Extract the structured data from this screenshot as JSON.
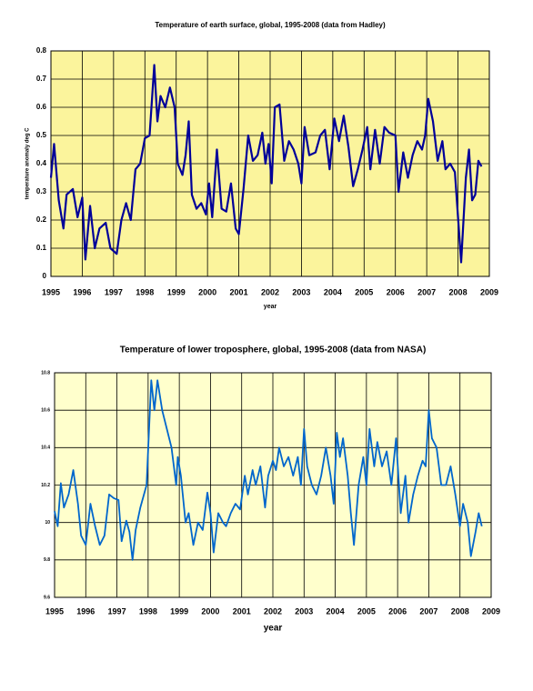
{
  "chart_data": [
    {
      "type": "line",
      "title": "Temperature of earth surface, global, 1995-2008 (data from Hadley)",
      "xlabel": "year",
      "ylabel": "temperature anomaly deg C",
      "color": "#000099",
      "xlim": [
        1995,
        2009
      ],
      "xticks": [
        1995,
        1996,
        1997,
        1998,
        1999,
        2000,
        2001,
        2002,
        2003,
        2004,
        2005,
        2006,
        2007,
        2008,
        2009
      ],
      "ylim": [
        0,
        0.8
      ],
      "yticks": [
        0,
        0.1,
        0.2,
        0.3,
        0.4,
        0.5,
        0.6,
        0.7,
        0.8
      ],
      "grid": true,
      "x": [
        1995.0,
        1995.1,
        1995.25,
        1995.4,
        1995.5,
        1995.7,
        1995.85,
        1996.0,
        1996.1,
        1996.25,
        1996.4,
        1996.55,
        1996.75,
        1996.9,
        1997.1,
        1997.25,
        1997.4,
        1997.55,
        1997.7,
        1997.85,
        1998.0,
        1998.15,
        1998.3,
        1998.4,
        1998.5,
        1998.65,
        1998.8,
        1998.95,
        1999.05,
        1999.2,
        1999.3,
        1999.4,
        1999.5,
        1999.65,
        1999.8,
        1999.95,
        2000.05,
        2000.15,
        2000.3,
        2000.45,
        2000.6,
        2000.75,
        2000.9,
        2001.0,
        2001.15,
        2001.3,
        2001.45,
        2001.6,
        2001.75,
        2001.85,
        2001.95,
        2002.05,
        2002.15,
        2002.3,
        2002.45,
        2002.6,
        2002.75,
        2002.9,
        2003.0,
        2003.1,
        2003.25,
        2003.45,
        2003.6,
        2003.75,
        2003.9,
        2004.05,
        2004.2,
        2004.35,
        2004.5,
        2004.65,
        2004.8,
        2004.95,
        2005.1,
        2005.2,
        2005.35,
        2005.5,
        2005.65,
        2005.8,
        2006.0,
        2006.1,
        2006.25,
        2006.4,
        2006.55,
        2006.7,
        2006.85,
        2006.95,
        2007.05,
        2007.2,
        2007.35,
        2007.5,
        2007.6,
        2007.75,
        2007.9,
        2008.0,
        2008.1,
        2008.25,
        2008.35,
        2008.45,
        2008.55,
        2008.65,
        2008.75
      ],
      "values": [
        0.35,
        0.47,
        0.27,
        0.17,
        0.29,
        0.31,
        0.21,
        0.28,
        0.06,
        0.25,
        0.1,
        0.17,
        0.19,
        0.1,
        0.08,
        0.2,
        0.26,
        0.2,
        0.38,
        0.4,
        0.49,
        0.5,
        0.75,
        0.55,
        0.64,
        0.6,
        0.67,
        0.6,
        0.4,
        0.36,
        0.43,
        0.55,
        0.29,
        0.24,
        0.26,
        0.22,
        0.33,
        0.21,
        0.45,
        0.24,
        0.23,
        0.33,
        0.17,
        0.15,
        0.31,
        0.5,
        0.41,
        0.43,
        0.51,
        0.4,
        0.47,
        0.33,
        0.6,
        0.61,
        0.41,
        0.48,
        0.45,
        0.4,
        0.33,
        0.53,
        0.43,
        0.44,
        0.5,
        0.52,
        0.38,
        0.56,
        0.48,
        0.57,
        0.46,
        0.32,
        0.38,
        0.45,
        0.53,
        0.38,
        0.52,
        0.4,
        0.53,
        0.51,
        0.5,
        0.3,
        0.44,
        0.35,
        0.43,
        0.48,
        0.45,
        0.5,
        0.63,
        0.55,
        0.41,
        0.48,
        0.38,
        0.4,
        0.37,
        0.21,
        0.05,
        0.35,
        0.45,
        0.27,
        0.29,
        0.41,
        0.39
      ]
    },
    {
      "type": "line",
      "title": "Temperature of lower troposphere, global, 1995-2008 (data from NASA)",
      "xlabel": "year",
      "color": "#0066cc",
      "xlim": [
        1995,
        2009
      ],
      "xticks": [
        1995,
        1996,
        1997,
        1998,
        1999,
        2000,
        2001,
        2002,
        2003,
        2004,
        2005,
        2006,
        2007,
        2008,
        2009
      ],
      "ylim": [
        9.6,
        10.8
      ],
      "yticks": [
        9.6,
        9.8,
        10,
        10.2,
        10.4,
        10.6,
        10.8
      ],
      "grid": true,
      "x": [
        1995.0,
        1995.1,
        1995.2,
        1995.3,
        1995.45,
        1995.6,
        1995.75,
        1995.85,
        1996.0,
        1996.15,
        1996.3,
        1996.45,
        1996.6,
        1996.75,
        1996.9,
        1997.05,
        1997.15,
        1997.3,
        1997.4,
        1997.5,
        1997.6,
        1997.75,
        1997.95,
        1998.1,
        1998.2,
        1998.3,
        1998.45,
        1998.6,
        1998.75,
        1998.9,
        1998.95,
        1999.05,
        1999.2,
        1999.3,
        1999.45,
        1999.6,
        1999.75,
        1999.9,
        2000.0,
        2000.1,
        2000.25,
        2000.4,
        2000.5,
        2000.65,
        2000.8,
        2000.95,
        2001.1,
        2001.2,
        2001.35,
        2001.45,
        2001.6,
        2001.75,
        2001.85,
        2002.0,
        2002.1,
        2002.2,
        2002.35,
        2002.5,
        2002.65,
        2002.8,
        2002.9,
        2003.0,
        2003.1,
        2003.25,
        2003.4,
        2003.55,
        2003.7,
        2003.85,
        2003.95,
        2004.05,
        2004.15,
        2004.25,
        2004.4,
        2004.5,
        2004.6,
        2004.75,
        2004.9,
        2005.0,
        2005.1,
        2005.25,
        2005.35,
        2005.5,
        2005.65,
        2005.8,
        2005.95,
        2006.1,
        2006.25,
        2006.35,
        2006.5,
        2006.65,
        2006.8,
        2006.9,
        2007.0,
        2007.1,
        2007.25,
        2007.4,
        2007.55,
        2007.7,
        2007.85,
        2008.0,
        2008.1,
        2008.25,
        2008.35,
        2008.5,
        2008.6,
        2008.7
      ],
      "values": [
        10.06,
        9.98,
        10.21,
        10.08,
        10.15,
        10.28,
        10.1,
        9.93,
        9.88,
        10.1,
        9.98,
        9.88,
        9.93,
        10.15,
        10.13,
        10.12,
        9.9,
        10.01,
        9.95,
        9.8,
        9.96,
        10.08,
        10.2,
        10.76,
        10.6,
        10.76,
        10.6,
        10.5,
        10.4,
        10.2,
        10.35,
        10.25,
        10.0,
        10.05,
        9.88,
        10.0,
        9.96,
        10.16,
        10.05,
        9.84,
        10.05,
        10.0,
        9.98,
        10.05,
        10.1,
        10.07,
        10.25,
        10.15,
        10.28,
        10.2,
        10.3,
        10.08,
        10.25,
        10.33,
        10.28,
        10.4,
        10.3,
        10.35,
        10.25,
        10.35,
        10.2,
        10.5,
        10.3,
        10.2,
        10.15,
        10.25,
        10.4,
        10.25,
        10.1,
        10.48,
        10.35,
        10.45,
        10.25,
        10.05,
        9.88,
        10.2,
        10.35,
        10.2,
        10.5,
        10.3,
        10.43,
        10.3,
        10.38,
        10.2,
        10.45,
        10.05,
        10.25,
        10.0,
        10.15,
        10.25,
        10.33,
        10.3,
        10.6,
        10.45,
        10.4,
        10.2,
        10.2,
        10.3,
        10.15,
        9.98,
        10.1,
        10.0,
        9.82,
        9.95,
        10.05,
        9.98
      ]
    }
  ]
}
